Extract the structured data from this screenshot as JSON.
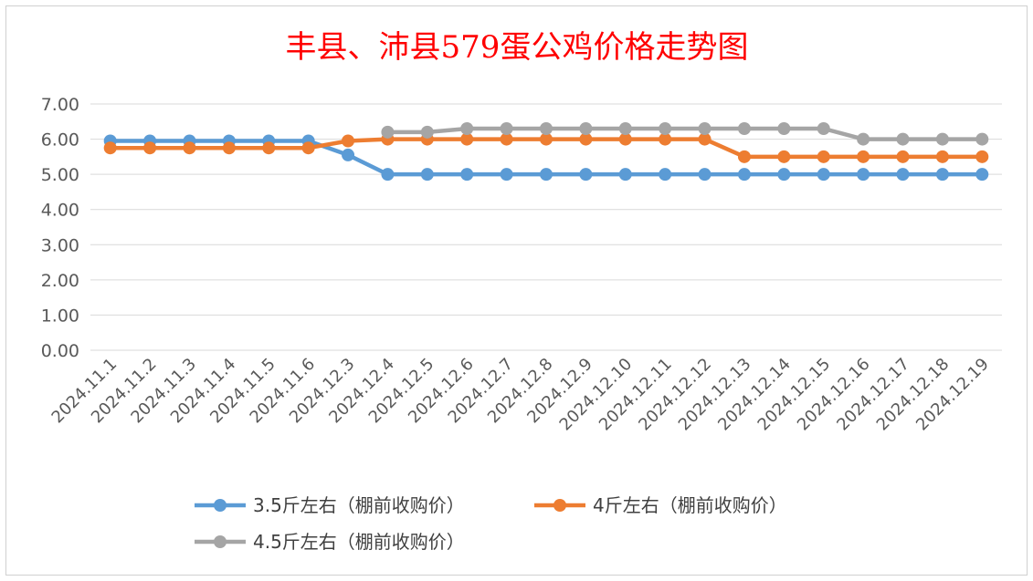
{
  "chart_data": {
    "type": "line",
    "title": "丰县、沛县579蛋公鸡价格走势图",
    "xlabel": "",
    "ylabel": "",
    "ylim": [
      0,
      7
    ],
    "yticks": [
      "0.00",
      "1.00",
      "2.00",
      "3.00",
      "4.00",
      "5.00",
      "6.00",
      "7.00"
    ],
    "grid": true,
    "legend_position": "bottom",
    "categories": [
      "2024.11.1",
      "2024.11.2",
      "2024.11.3",
      "2024.11.4",
      "2024.11.5",
      "2024.11.6",
      "2024.12.3",
      "2024.12.4",
      "2024.12.5",
      "2024.12.6",
      "2024.12.7",
      "2024.12.8",
      "2024.12.9",
      "2024.12.10",
      "2024.12.11",
      "2024.12.12",
      "2024.12.13",
      "2024.12.14",
      "2024.12.15",
      "2024.12.16",
      "2024.12.17",
      "2024.12.18",
      "2024.12.19"
    ],
    "series": [
      {
        "name": "3.5斤左右（棚前收购价）",
        "color": "#5b9bd5",
        "values": [
          5.95,
          5.95,
          5.95,
          5.95,
          5.95,
          5.95,
          5.55,
          5.0,
          5.0,
          5.0,
          5.0,
          5.0,
          5.0,
          5.0,
          5.0,
          5.0,
          5.0,
          5.0,
          5.0,
          5.0,
          5.0,
          5.0,
          5.0
        ]
      },
      {
        "name": "4斤左右（棚前收购价）",
        "color": "#ed7d31",
        "values": [
          5.75,
          5.75,
          5.75,
          5.75,
          5.75,
          5.75,
          5.95,
          6.0,
          6.0,
          6.0,
          6.0,
          6.0,
          6.0,
          6.0,
          6.0,
          6.0,
          5.5,
          5.5,
          5.5,
          5.5,
          5.5,
          5.5,
          5.5
        ]
      },
      {
        "name": "4.5斤左右（棚前收购价）",
        "color": "#a5a5a5",
        "values": [
          null,
          null,
          null,
          null,
          null,
          null,
          null,
          6.2,
          6.2,
          6.3,
          6.3,
          6.3,
          6.3,
          6.3,
          6.3,
          6.3,
          6.3,
          6.3,
          6.3,
          6.0,
          6.0,
          6.0,
          6.0
        ]
      }
    ]
  }
}
